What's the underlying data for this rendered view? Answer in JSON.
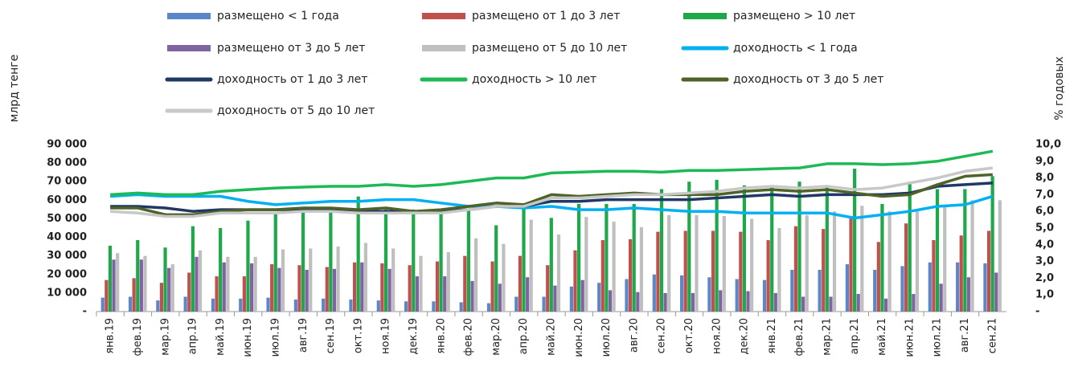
{
  "chart_data": {
    "type": "combo",
    "ylabel": "млрд тенге",
    "y2label": "% годовых",
    "categories": [
      "янв.19",
      "фев.19",
      "мар.19",
      "апр.19",
      "май.19",
      "июн.19",
      "июл.19",
      "авг.19",
      "сен.19",
      "окт.19",
      "ноя.19",
      "дек.19",
      "янв.20",
      "фев.20",
      "мар.20",
      "апр.20",
      "май.20",
      "июн.20",
      "июл.20",
      "авг.20",
      "сен.20",
      "окт.20",
      "ноя.20",
      "дек.20",
      "янв.21",
      "фев.21",
      "мар.21",
      "апр.21",
      "май.21",
      "июн.21",
      "июл.21",
      "авг.21",
      "сен.21"
    ],
    "ylim": [
      0,
      90000
    ],
    "yticks": [
      {
        "value": 0,
        "label": "-"
      },
      {
        "value": 10000,
        "label": "10 000"
      },
      {
        "value": 20000,
        "label": "20 000"
      },
      {
        "value": 30000,
        "label": "30 000"
      },
      {
        "value": 40000,
        "label": "40 000"
      },
      {
        "value": 50000,
        "label": "50 000"
      },
      {
        "value": 60000,
        "label": "60 000"
      },
      {
        "value": 70000,
        "label": "70 000"
      },
      {
        "value": 80000,
        "label": "80 000"
      },
      {
        "value": 90000,
        "label": "90 000"
      }
    ],
    "y2lim": [
      0,
      10
    ],
    "y2ticks": [
      {
        "value": 0,
        "label": "-"
      },
      {
        "value": 1,
        "label": "1,0"
      },
      {
        "value": 2,
        "label": "2,0"
      },
      {
        "value": 3,
        "label": "3,0"
      },
      {
        "value": 4,
        "label": "4,0"
      },
      {
        "value": 5,
        "label": "5,0"
      },
      {
        "value": 6,
        "label": "6,0"
      },
      {
        "value": 7,
        "label": "7,0"
      },
      {
        "value": 8,
        "label": "8,0"
      },
      {
        "value": 9,
        "label": "9,0"
      },
      {
        "value": 10,
        "label": "10,0"
      }
    ],
    "series": [
      {
        "name": "размещено < 1 года",
        "type": "bar",
        "color": "#5b87c8",
        "values": [
          7500,
          8000,
          6000,
          8000,
          7000,
          7000,
          7500,
          6500,
          7000,
          6500,
          6000,
          5500,
          5500,
          5000,
          4500,
          8000,
          8000,
          13500,
          15500,
          17500,
          20000,
          19500,
          18500,
          17500,
          17000,
          22500,
          22500,
          25500,
          22500,
          24500,
          26500,
          26500,
          26000
        ]
      },
      {
        "name": "размещено от 1 до 3 лет",
        "type": "bar",
        "color": "#c0504d",
        "values": [
          17000,
          18000,
          15500,
          21000,
          19000,
          19000,
          25500,
          25000,
          24000,
          26500,
          26000,
          25000,
          27000,
          30000,
          27000,
          30000,
          25000,
          33000,
          38500,
          39000,
          43000,
          43500,
          43500,
          43000,
          38500,
          46000,
          44500,
          51000,
          37500,
          47500,
          38500,
          41000,
          43500
        ]
      },
      {
        "name": "размещено > 10 лет",
        "type": "bar",
        "color": "#1fa84a",
        "values": [
          35500,
          38500,
          34500,
          46000,
          45000,
          49000,
          53000,
          55000,
          55000,
          62000,
          55000,
          55000,
          55000,
          55000,
          46500,
          58000,
          50500,
          58000,
          58000,
          58000,
          66000,
          70000,
          71000,
          68000,
          68000,
          70000,
          68000,
          77000,
          58000,
          70000,
          66000,
          66000,
          73000
        ]
      },
      {
        "name": "размещено от 3 до 5 лет",
        "type": "bar",
        "color": "#8064a2",
        "values": [
          28000,
          28000,
          23500,
          29500,
          26500,
          26000,
          23500,
          22500,
          23000,
          26500,
          23000,
          19000,
          19000,
          16500,
          15000,
          18500,
          14000,
          17000,
          11500,
          10500,
          10000,
          10000,
          11500,
          11000,
          10000,
          8000,
          8000,
          9500,
          7000,
          9500,
          15000,
          18500,
          21000
        ]
      },
      {
        "name": "размещено от 5 до 10 лет",
        "type": "bar",
        "color": "#bfbfbf",
        "values": [
          31500,
          30000,
          25500,
          33000,
          29500,
          29500,
          33500,
          34000,
          35000,
          37000,
          34000,
          30000,
          32000,
          39500,
          36500,
          49500,
          41500,
          51000,
          48500,
          45500,
          52000,
          52000,
          51500,
          50000,
          45000,
          52000,
          54000,
          57000,
          54000,
          55000,
          57000,
          60000,
          60000
        ]
      },
      {
        "name": "доходность < 1 года",
        "type": "line",
        "axis": "y2",
        "color": "#00b0f0",
        "values": [
          6.9,
          7.0,
          6.9,
          6.9,
          6.9,
          6.6,
          6.4,
          6.5,
          6.6,
          6.6,
          6.7,
          6.7,
          6.5,
          6.3,
          6.3,
          6.2,
          6.3,
          6.1,
          6.1,
          6.2,
          6.1,
          6.0,
          6.0,
          5.9,
          5.9,
          5.9,
          5.9,
          5.6,
          5.8,
          6.0,
          6.3,
          6.4,
          6.9
        ]
      },
      {
        "name": "доходность от 1 до 3 лет",
        "type": "line",
        "axis": "y2",
        "color": "#1f3864",
        "values": [
          6.3,
          6.3,
          6.2,
          6.0,
          6.1,
          6.1,
          6.1,
          6.1,
          6.1,
          6.0,
          6.0,
          6.0,
          6.0,
          6.1,
          6.3,
          6.3,
          6.6,
          6.6,
          6.7,
          6.7,
          6.7,
          6.7,
          6.8,
          6.9,
          7.0,
          6.9,
          7.0,
          7.0,
          7.0,
          7.1,
          7.5,
          7.6,
          7.7
        ]
      },
      {
        "name": "доходность > 10 лет",
        "type": "line",
        "axis": "y2",
        "color": "#1db954",
        "values": [
          7.0,
          7.1,
          7.0,
          7.0,
          7.2,
          7.3,
          7.4,
          7.45,
          7.5,
          7.5,
          7.6,
          7.5,
          7.6,
          7.8,
          8.0,
          8.0,
          8.3,
          8.35,
          8.4,
          8.4,
          8.35,
          8.45,
          8.45,
          8.5,
          8.55,
          8.6,
          8.85,
          8.85,
          8.8,
          8.85,
          9.0,
          9.3,
          9.6
        ]
      },
      {
        "name": "доходность от 3 до 5 лет",
        "type": "line",
        "axis": "y2",
        "color": "#4f6228",
        "values": [
          6.2,
          6.2,
          5.8,
          5.8,
          6.0,
          6.1,
          6.1,
          6.2,
          6.2,
          6.1,
          6.2,
          6.0,
          6.1,
          6.3,
          6.5,
          6.4,
          7.0,
          6.9,
          7.0,
          7.1,
          7.0,
          7.0,
          7.0,
          7.2,
          7.3,
          7.2,
          7.3,
          7.1,
          6.9,
          7.0,
          7.6,
          8.1,
          8.2
        ]
      },
      {
        "name": "доходность от 5 до 10 лет",
        "type": "line",
        "axis": "y2",
        "color": "#c8c8c8",
        "values": [
          6.0,
          5.9,
          5.7,
          5.7,
          5.9,
          5.9,
          5.9,
          6.0,
          6.0,
          5.9,
          5.9,
          5.9,
          5.9,
          6.1,
          6.3,
          6.3,
          6.8,
          6.8,
          6.9,
          7.0,
          7.0,
          7.1,
          7.2,
          7.4,
          7.5,
          7.4,
          7.5,
          7.3,
          7.4,
          7.7,
          8.0,
          8.4,
          8.6
        ]
      }
    ]
  }
}
